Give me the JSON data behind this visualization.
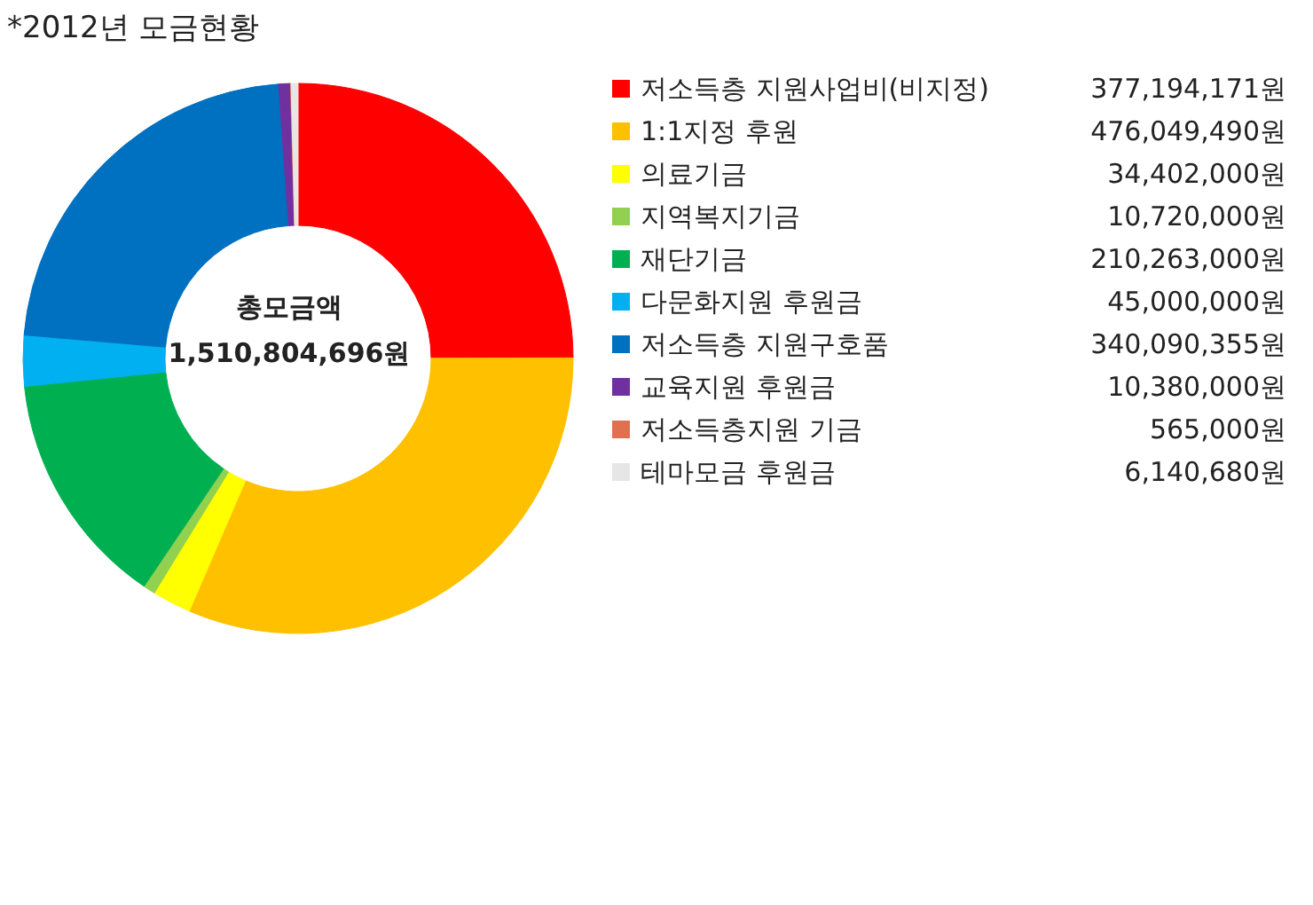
{
  "chart_data": {
    "type": "donut",
    "title": "*2012년 모금현황",
    "annotations": [
      "총모금액",
      "1,510,804,696원"
    ],
    "legend": "right",
    "categories": [
      "저소득층 지원사업비(비지정)",
      "1:1지정 후원",
      "의료기금",
      "지역복지기금",
      "재단기금",
      "다문화지원 후원금",
      "저소득층 지원구호품",
      "교육지원 후원금",
      "저소득층지원 기금",
      "테마모금 후원금"
    ],
    "values": [
      377194171,
      476049490,
      34402000,
      10720000,
      210263000,
      45000000,
      340090355,
      10380000,
      565000,
      6140680
    ],
    "value_labels": [
      "377,194,171원",
      "476,049,490원",
      "34,402,000원",
      "10,720,000원",
      "210,263,000원",
      "45,000,000원",
      "340,090,355원",
      "10,380,000원",
      "565,000원",
      "6,140,680원"
    ],
    "colors": [
      "#ff0000",
      "#ffc000",
      "#ffff00",
      "#92d050",
      "#00b050",
      "#00b0f0",
      "#0070c0",
      "#7030a0",
      "#e07050",
      "#e6e6e6"
    ]
  }
}
